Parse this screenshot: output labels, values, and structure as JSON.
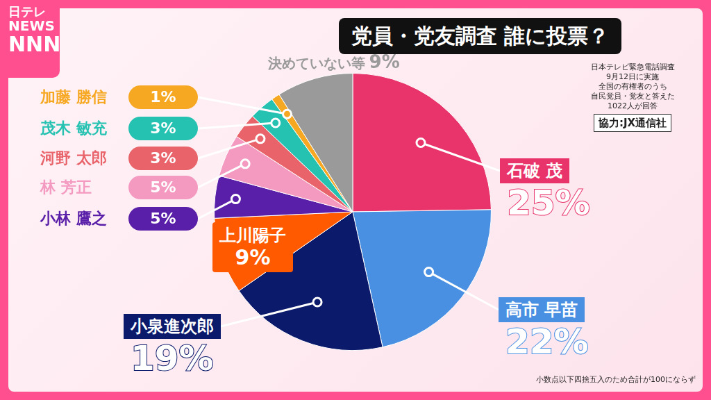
{
  "chart_data": {
    "type": "pie",
    "title": "党員・党友調査 誰に投票？",
    "categories": [
      "石破 茂",
      "高市 早苗",
      "小泉進次郎",
      "上川陽子",
      "小林 鷹之",
      "林 芳正",
      "河野 太郎",
      "茂木 敏充",
      "加藤 勝信",
      "決めていない等"
    ],
    "values": [
      25,
      22,
      19,
      9,
      5,
      5,
      3,
      3,
      1,
      9
    ],
    "value_labels": [
      "25%",
      "22%",
      "19%",
      "9%",
      "5%",
      "5%",
      "3%",
      "3%",
      "1%",
      "9%"
    ],
    "colors": [
      "#e8336b",
      "#4a90e2",
      "#0c1a6b",
      "#ff5a00",
      "#5a1fa8",
      "#f49ac1",
      "#e8646a",
      "#25c2b2",
      "#f7a823",
      "#9a9a9a"
    ],
    "data_labels": true,
    "legend": false,
    "notes": [
      "日本テレビ緊急電話調査",
      "9月12日に実施",
      "全国の有権者のうち",
      "自民党員・党友と答えた",
      "1022人が回答"
    ],
    "credit": "協力:JX通信社",
    "footnote": "小数点以下四捨五入のため合計が100にならず",
    "logo": [
      "日テレ",
      "NEWS",
      "NNN"
    ]
  }
}
